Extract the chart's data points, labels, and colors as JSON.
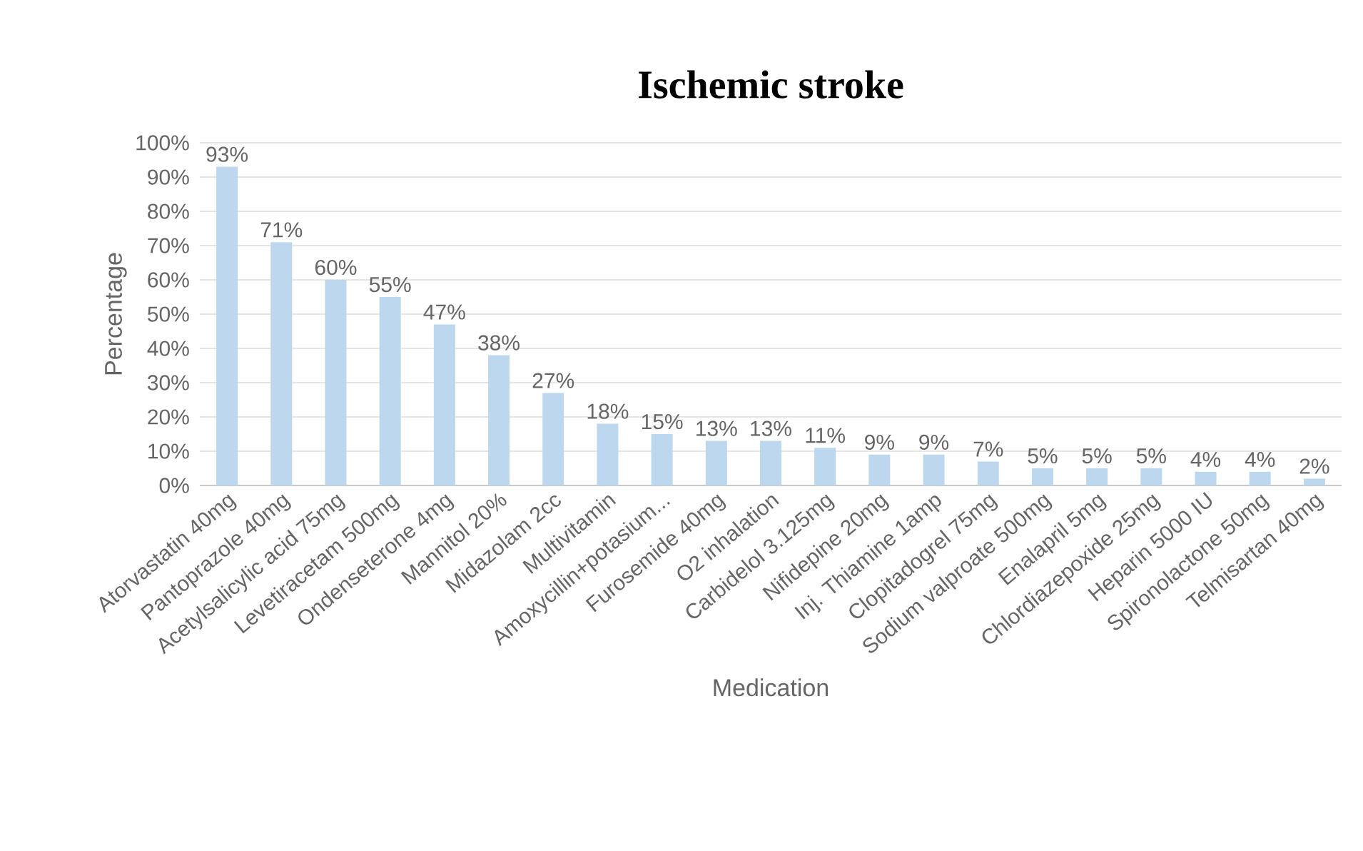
{
  "chart_data": {
    "type": "bar",
    "title": "Ischemic stroke",
    "xlabel": "Medication",
    "ylabel": "Percentage",
    "categories": [
      "Atorvastatin 40mg",
      "Pantoprazole 40mg",
      "Acetylsalicylic acid 75mg",
      "Levetiracetam 500mg",
      "Ondenseterone 4mg",
      "Mannitol 20%",
      "Midazolam 2cc",
      "Multivitamin",
      "Amoxycillin+potasium...",
      "Furosemide 40mg",
      "O2 inhalation",
      "Carbidelol 3.125mg",
      "Nifidepine 20mg",
      "Inj. Thiamine 1amp",
      "Clopitadogrel 75mg",
      "Sodium valproate 500mg",
      "Enalapril 5mg",
      "Chlordiazepoxide 25mg",
      "Heparin 5000 IU",
      "Spironolactone 50mg",
      "Telmisartan 40mg"
    ],
    "values": [
      93,
      71,
      60,
      55,
      47,
      38,
      27,
      18,
      15,
      13,
      13,
      11,
      9,
      9,
      7,
      5,
      5,
      5,
      4,
      4,
      2
    ],
    "value_labels": [
      "93%",
      "71%",
      "60%",
      "55%",
      "47%",
      "38%",
      "27%",
      "18%",
      "15%",
      "13%",
      "13%",
      "11%",
      "9%",
      "9%",
      "7%",
      "5%",
      "5%",
      "5%",
      "4%",
      "4%",
      "2%"
    ],
    "color": "#bdd7ee",
    "ylim": [
      0,
      100
    ],
    "yticks": [
      {
        "value": 0,
        "label": "0%"
      },
      {
        "value": 10,
        "label": "10%"
      },
      {
        "value": 20,
        "label": "20%"
      },
      {
        "value": 30,
        "label": "30%"
      },
      {
        "value": 40,
        "label": "40%"
      },
      {
        "value": 50,
        "label": "50%"
      },
      {
        "value": 60,
        "label": "60%"
      },
      {
        "value": 70,
        "label": "70%"
      },
      {
        "value": 80,
        "label": "80%"
      },
      {
        "value": 90,
        "label": "90%"
      },
      {
        "value": 100,
        "label": "100%"
      }
    ],
    "grid": "y"
  }
}
